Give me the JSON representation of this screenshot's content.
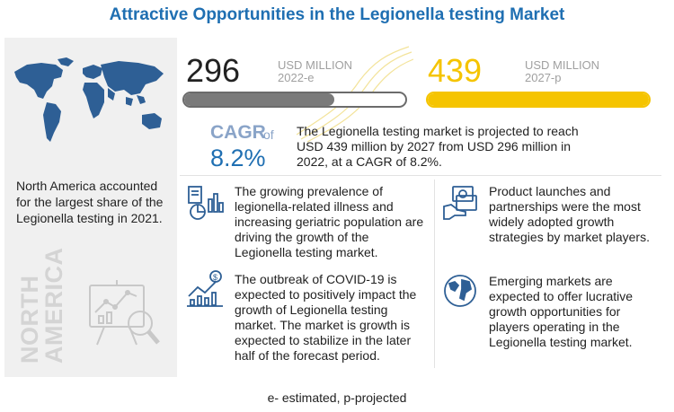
{
  "header": {
    "title": "Attractive Opportunities in the Legionella testing Market"
  },
  "sidebar": {
    "region_text": "North America accounted for the largest share of the Legionella testing in 2021.",
    "region_label_line1": "NORTH",
    "region_label_line2": "AMERICA"
  },
  "market_size": {
    "start": {
      "value": "296",
      "unit": "USD MILLION",
      "year": "2022-e",
      "fill_fraction": 0.68,
      "bar_color": "#7a7a7a"
    },
    "end": {
      "value": "439",
      "unit": "USD MILLION",
      "year": "2027-p",
      "fill_fraction": 1.0,
      "bar_color": "#f5c400"
    }
  },
  "cagr": {
    "label": "CAGR",
    "of": "of",
    "value": "8.2%",
    "description": "The Legionella testing market is projected to reach USD 439 million by 2027 from USD 296 million in 2022, at a CAGR of 8.2%."
  },
  "points": [
    {
      "icon": "survey-chart-icon",
      "text": "The growing prevalence of legionella-related illness and increasing geriatric population are driving the growth of the Legionella testing market."
    },
    {
      "icon": "product-launch-icon",
      "text": "Product launches and partnerships were the most widely adopted growth strategies by market players."
    },
    {
      "icon": "growth-chart-icon",
      "text": "The outbreak of COVID-19 is expected to positively impact the growth of Legionella testing market. The market is growth is expected to stabilize in the later half of the forecast period."
    },
    {
      "icon": "globe-icon",
      "text": "Emerging markets are expected to offer lucrative growth opportunities for players operating in the Legionella testing market."
    }
  ],
  "colors": {
    "title_blue": "#1f6fb2",
    "gold": "#f5c400",
    "icon_blue": "#2e5f95",
    "sidebar_gray": "#f0f0f0"
  },
  "footnote": "e- estimated, p-projected"
}
